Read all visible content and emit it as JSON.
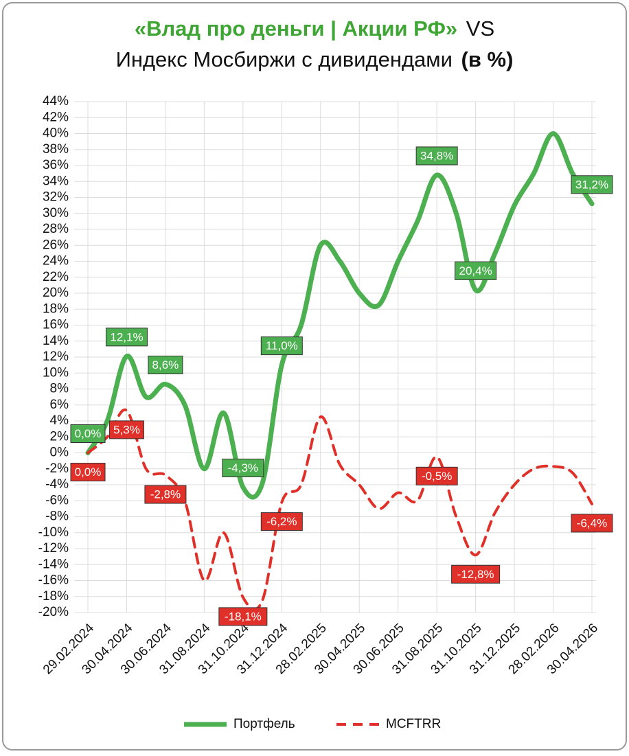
{
  "chart_data": {
    "type": "line",
    "title": {
      "line1_brand": "«Влад про деньги | Акции РФ»",
      "line1_rest": "VS",
      "line2": "Индекс Мосбиржи с дивидендами",
      "line2_bold": "(в %)"
    },
    "categories": [
      "29.02.2024",
      null,
      "30.04.2024",
      null,
      "30.06.2024",
      null,
      "31.08.2024",
      null,
      "31.10.2024",
      null,
      "31.12.2024",
      null,
      "28.02.2025",
      null,
      "30.04.2025",
      null,
      "30.06.2025",
      null,
      "31.08.2025",
      null,
      "31.10.2025",
      null,
      "31.12.2025",
      null,
      "28.02.2026",
      null,
      "30.04.2026"
    ],
    "series": [
      {
        "name": "Портфель",
        "color": "#4caf50",
        "dashed": false,
        "values": [
          0,
          4,
          12.1,
          7,
          8.6,
          6,
          -2,
          5,
          -4.3,
          -3.8,
          11.0,
          16,
          26,
          24,
          20,
          18.5,
          24,
          29,
          34.8,
          30,
          20.4,
          25,
          31,
          35,
          40,
          35,
          31.2
        ],
        "value_labels": [
          "0,0%",
          null,
          "12,1%",
          null,
          "8,6%",
          null,
          null,
          null,
          "-4,3%",
          null,
          "11,0%",
          null,
          null,
          null,
          null,
          null,
          null,
          null,
          "34,8%",
          null,
          "20,4%",
          null,
          null,
          null,
          null,
          null,
          "31,2%"
        ]
      },
      {
        "name": "MCFTRR",
        "color": "#e0302a",
        "dashed": true,
        "values": [
          0,
          2,
          5.3,
          -2,
          -2.8,
          -6,
          -16,
          -10,
          -18.1,
          -18.5,
          -6.2,
          -4,
          4.5,
          -1.5,
          -4,
          -7,
          -5,
          -6,
          -0.5,
          -8,
          -12.8,
          -7.5,
          -4,
          -2,
          -1.7,
          -2.5,
          -6.4
        ],
        "value_labels": [
          "0,0%",
          null,
          "5,3%",
          null,
          "-2,8%",
          null,
          null,
          null,
          "-18,1%",
          null,
          "-6,2%",
          null,
          null,
          null,
          null,
          null,
          null,
          null,
          "-0,5%",
          null,
          "-12,8%",
          null,
          null,
          null,
          null,
          null,
          "-6,4%"
        ]
      }
    ],
    "ylim": [
      -20,
      44
    ],
    "yticks": [
      {
        "value": 44,
        "label": "44%"
      },
      {
        "value": 42,
        "label": "42%"
      },
      {
        "value": 40,
        "label": "40%"
      },
      {
        "value": 38,
        "label": "38%"
      },
      {
        "value": 36,
        "label": "36%"
      },
      {
        "value": 34,
        "label": "34%"
      },
      {
        "value": 32,
        "label": "32%"
      },
      {
        "value": 30,
        "label": "30%"
      },
      {
        "value": 28,
        "label": "28%"
      },
      {
        "value": 26,
        "label": "26%"
      },
      {
        "value": 24,
        "label": "24%"
      },
      {
        "value": 22,
        "label": "22%"
      },
      {
        "value": 20,
        "label": "20%"
      },
      {
        "value": 18,
        "label": "18%"
      },
      {
        "value": 16,
        "label": "16%"
      },
      {
        "value": 14,
        "label": "14%"
      },
      {
        "value": 12,
        "label": "12%"
      },
      {
        "value": 10,
        "label": "10%"
      },
      {
        "value": 8,
        "label": "8%"
      },
      {
        "value": 6,
        "label": "6%"
      },
      {
        "value": 4,
        "label": "4%"
      },
      {
        "value": 2,
        "label": "2%"
      },
      {
        "value": 0,
        "label": "0%"
      },
      {
        "value": -2,
        "label": "-2%"
      },
      {
        "value": -4,
        "label": "-4%"
      },
      {
        "value": -6,
        "label": "-6%"
      },
      {
        "value": -8,
        "label": "-8%"
      },
      {
        "value": -10,
        "label": "-10%"
      },
      {
        "value": -12,
        "label": "-12%"
      },
      {
        "value": -14,
        "label": "-14%"
      },
      {
        "value": -16,
        "label": "-16%"
      },
      {
        "value": -18,
        "label": "-18%"
      },
      {
        "value": -20,
        "label": "-20%"
      }
    ],
    "grid": true,
    "legend": "bottom"
  }
}
